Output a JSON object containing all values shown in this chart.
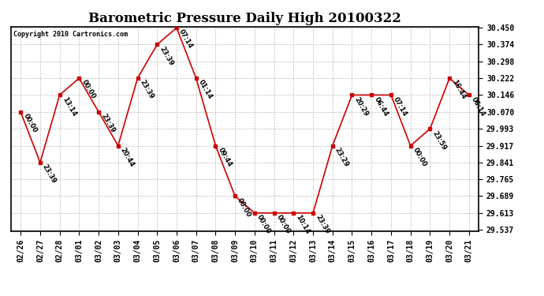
{
  "title": "Barometric Pressure Daily High 20100322",
  "copyright": "Copyright 2010 Cartronics.com",
  "dates": [
    "02/26",
    "02/27",
    "02/28",
    "03/01",
    "03/02",
    "03/03",
    "03/04",
    "03/05",
    "03/06",
    "03/07",
    "03/08",
    "03/09",
    "03/10",
    "03/11",
    "03/12",
    "03/13",
    "03/14",
    "03/15",
    "03/16",
    "03/17",
    "03/18",
    "03/19",
    "03/20",
    "03/21"
  ],
  "values": [
    30.07,
    29.841,
    30.146,
    30.222,
    30.07,
    29.917,
    30.222,
    30.374,
    30.45,
    30.222,
    29.917,
    29.689,
    29.613,
    29.613,
    29.613,
    29.613,
    29.917,
    30.146,
    30.146,
    30.146,
    29.917,
    29.993,
    30.222,
    30.146
  ],
  "times": [
    "00:00",
    "23:39",
    "13:14",
    "00:00",
    "23:39",
    "20:44",
    "23:39",
    "23:39",
    "07:14",
    "01:14",
    "09:44",
    "00:00",
    "00:00",
    "00:00",
    "10:14",
    "23:39",
    "23:29",
    "20:29",
    "06:44",
    "07:14",
    "00:00",
    "23:59",
    "16:44",
    "06:14"
  ],
  "ylim_min": 29.537,
  "ylim_max": 30.45,
  "yticks": [
    29.537,
    29.613,
    29.689,
    29.765,
    29.841,
    29.917,
    29.993,
    30.07,
    30.146,
    30.222,
    30.298,
    30.374,
    30.45
  ],
  "line_color": "#cc0000",
  "marker_color": "#cc0000",
  "bg_color": "#ffffff",
  "grid_color": "#bbbbbb",
  "title_fontsize": 12,
  "tick_fontsize": 7,
  "annot_fontsize": 6
}
